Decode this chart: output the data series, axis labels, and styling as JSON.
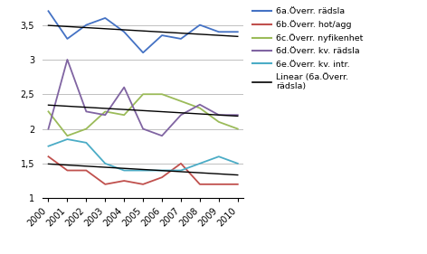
{
  "years": [
    2000,
    2001,
    2002,
    2003,
    2004,
    2005,
    2006,
    2007,
    2008,
    2009,
    2010
  ],
  "series": {
    "6a": [
      3.7,
      3.3,
      3.5,
      3.6,
      3.4,
      3.1,
      3.35,
      3.3,
      3.5,
      3.4,
      3.4
    ],
    "6b": [
      1.6,
      1.4,
      1.4,
      1.2,
      1.25,
      1.2,
      1.3,
      1.5,
      1.2,
      1.2,
      1.2
    ],
    "6c": [
      2.25,
      1.9,
      2.0,
      2.25,
      2.2,
      2.5,
      2.5,
      2.4,
      2.3,
      2.1,
      2.0
    ],
    "6d": [
      2.0,
      3.0,
      2.25,
      2.2,
      2.6,
      2.0,
      1.9,
      2.2,
      2.35,
      2.2,
      2.2
    ],
    "6e": [
      1.75,
      1.85,
      1.8,
      1.5,
      1.4,
      1.4,
      1.4,
      1.4,
      1.5,
      1.6,
      1.5
    ]
  },
  "colors": {
    "6a": "#4472C4",
    "6b": "#C0504D",
    "6c": "#9BBB59",
    "6d": "#8064A2",
    "6e": "#4BACC6"
  },
  "linear_color": "#000000",
  "ylim": [
    1.0,
    3.75
  ],
  "yticks": [
    1.0,
    1.5,
    2.0,
    2.5,
    3.0,
    3.5
  ],
  "ytick_labels": [
    "1",
    "1,5",
    "2",
    "2,5",
    "3",
    "3,5"
  ],
  "trend_offsets": [
    0.0,
    -1.15,
    -2.0
  ],
  "legend_labels": {
    "6a": "6a.Överr. rädsla",
    "6b": "6b.Överr. hot/agg",
    "6c": "6c.Överr. nyfikenhet",
    "6d": "6d.Överr. kv. rädsla",
    "6e": "6e.Överr. kv. intr.",
    "linear": "Linear (6a.Överr.\nrädsla)"
  },
  "background_color": "#FFFFFF",
  "grid_color": "#C0C0C0"
}
